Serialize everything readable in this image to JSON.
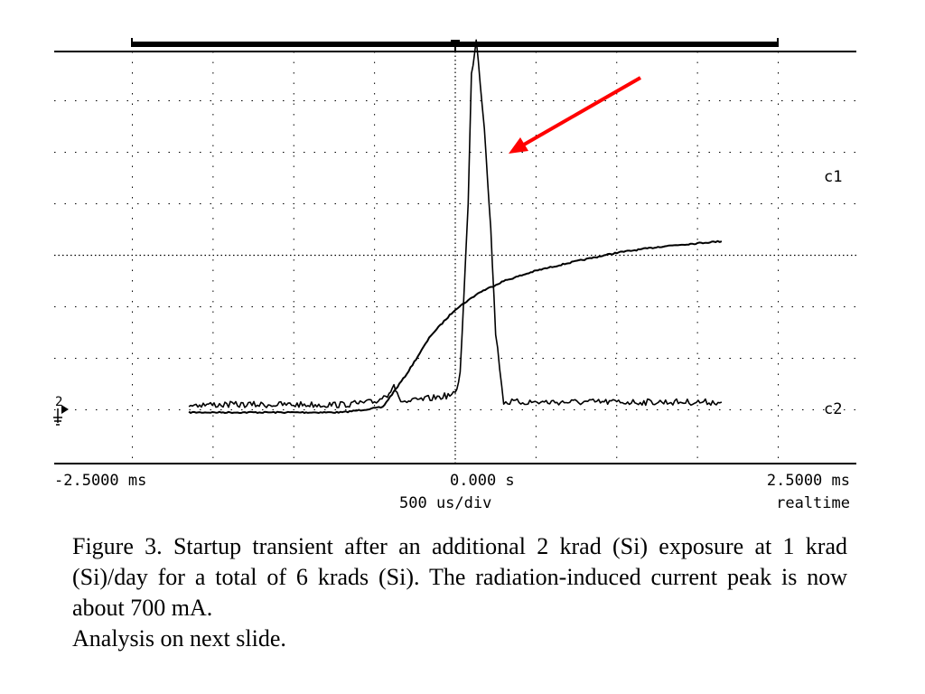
{
  "chart_data": {
    "type": "line",
    "title": "",
    "xlabel": "",
    "ylabel": "",
    "x_axis": {
      "left_label": "-2.5000 ms",
      "center_label": "0.000  s",
      "right_label": "2.5000 ms",
      "timebase_label": "500  us/div",
      "mode_label": "realtime",
      "xlim_ms": [
        -2.5,
        2.5
      ]
    },
    "grid": true,
    "grid_divisions": {
      "horizontal": 10,
      "vertical": 8
    },
    "channel_labels": {
      "c1": "c1",
      "c2": "c2"
    },
    "ground_marker": "2",
    "series": [
      {
        "name": "c1",
        "unit": "divisions",
        "x_ms": [
          -1.65,
          -0.7,
          -0.45,
          -0.3,
          -0.15,
          0.0,
          0.15,
          0.3,
          0.5,
          0.7,
          1.0,
          1.3,
          1.6,
          1.65
        ],
        "y_div": [
          -3.05,
          -3.05,
          -2.95,
          -2.3,
          -1.55,
          -1.05,
          -0.72,
          -0.5,
          -0.3,
          -0.15,
          0.05,
          0.18,
          0.26,
          0.27
        ]
      },
      {
        "name": "c2",
        "unit": "divisions",
        "x_ms": [
          -1.65,
          -0.7,
          -0.5,
          -0.42,
          -0.38,
          -0.35,
          -0.3,
          0.0,
          0.03,
          0.08,
          0.1,
          0.13,
          0.18,
          0.22,
          0.25,
          0.3,
          0.35,
          1.0,
          1.65
        ],
        "y_div": [
          -2.9,
          -2.9,
          -2.85,
          -2.7,
          -2.5,
          -2.8,
          -2.85,
          -2.7,
          -2.3,
          1.0,
          3.5,
          4.2,
          2.5,
          0.5,
          -1.5,
          -2.85,
          -2.85,
          -2.85,
          -2.85
        ]
      }
    ],
    "annotation": {
      "type": "arrow",
      "color": "#ff0000",
      "description_of_target": "current peak"
    }
  },
  "caption": {
    "text": "Figure 3.  Startup transient after an additional 2 krad (Si) exposure at 1 krad (Si)/day for a total of 6 krads (Si).  The radiation-induced current peak is now about 700 mA.",
    "last_line": "Analysis on next slide."
  },
  "colors": {
    "trace": "#000000",
    "arrow": "#ff0000",
    "background": "#ffffff"
  }
}
